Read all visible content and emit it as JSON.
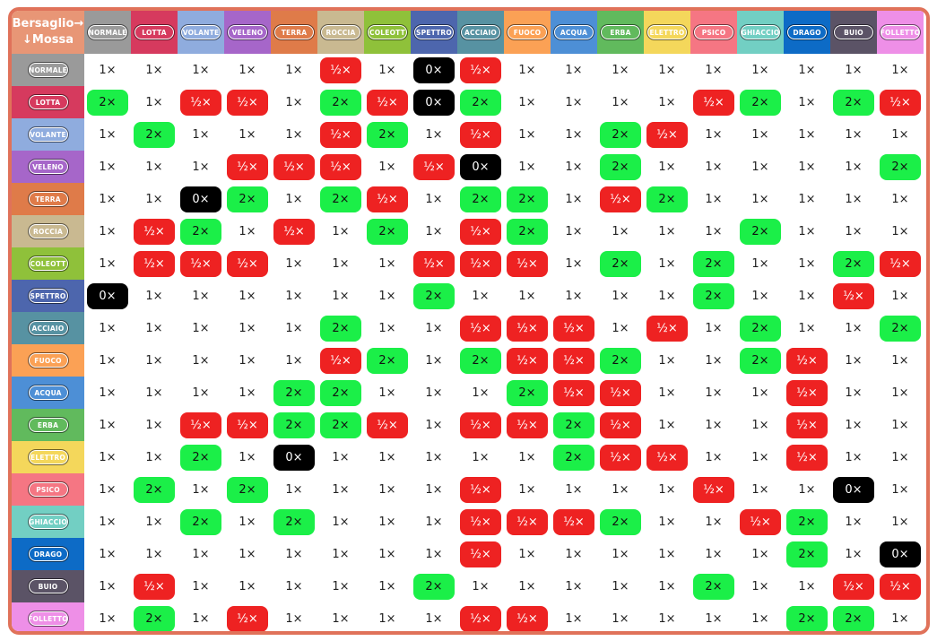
{
  "corner": {
    "target_label": "Bersaglio→",
    "move_label": "↓Mossa"
  },
  "types": [
    {
      "key": "normale",
      "label": "NORMALE",
      "color": "#9a9a9a"
    },
    {
      "key": "lotta",
      "label": "LOTTA",
      "color": "#d63a5e"
    },
    {
      "key": "volante",
      "label": "VOLANTE",
      "color": "#8facde"
    },
    {
      "key": "veleno",
      "label": "VELENO",
      "color": "#a666c9"
    },
    {
      "key": "terra",
      "label": "TERRA",
      "color": "#df7b49"
    },
    {
      "key": "roccia",
      "label": "ROCCIA",
      "color": "#c9b991"
    },
    {
      "key": "coleott",
      "label": "COLEOTT",
      "color": "#8fc13a"
    },
    {
      "key": "spettro",
      "label": "SPETTRO",
      "color": "#4d66ad"
    },
    {
      "key": "acciaio",
      "label": "ACCIAIO",
      "color": "#5792a2"
    },
    {
      "key": "fuoco",
      "label": "FUOCO",
      "color": "#fba155"
    },
    {
      "key": "acqua",
      "label": "ACQUA",
      "color": "#4d8fd6"
    },
    {
      "key": "erba",
      "label": "ERBA",
      "color": "#61ba5d"
    },
    {
      "key": "elettro",
      "label": "ELETTRO",
      "color": "#f4d75b"
    },
    {
      "key": "psico",
      "label": "PSICO",
      "color": "#f57683"
    },
    {
      "key": "ghiaccio",
      "label": "GHIACCIO",
      "color": "#72cfc3"
    },
    {
      "key": "drago",
      "label": "DRAGO",
      "color": "#0d6bc6"
    },
    {
      "key": "buio",
      "label": "BUIO",
      "color": "#5b5366"
    },
    {
      "key": "folletto",
      "label": "FOLLETTO",
      "color": "#ee8fe7"
    }
  ],
  "labels": {
    "one": "1×",
    "two": "2×",
    "half": "½×",
    "zero": "0×"
  },
  "matrix": [
    [
      "1",
      "1",
      "1",
      "1",
      "1",
      "h",
      "1",
      "0",
      "h",
      "1",
      "1",
      "1",
      "1",
      "1",
      "1",
      "1",
      "1",
      "1"
    ],
    [
      "2",
      "1",
      "h",
      "h",
      "1",
      "2",
      "h",
      "0",
      "2",
      "1",
      "1",
      "1",
      "1",
      "h",
      "2",
      "1",
      "2",
      "h"
    ],
    [
      "1",
      "2",
      "1",
      "1",
      "1",
      "h",
      "2",
      "1",
      "h",
      "1",
      "1",
      "2",
      "h",
      "1",
      "1",
      "1",
      "1",
      "1"
    ],
    [
      "1",
      "1",
      "1",
      "h",
      "h",
      "h",
      "1",
      "h",
      "0",
      "1",
      "1",
      "2",
      "1",
      "1",
      "1",
      "1",
      "1",
      "2"
    ],
    [
      "1",
      "1",
      "0",
      "2",
      "1",
      "2",
      "h",
      "1",
      "2",
      "2",
      "1",
      "h",
      "2",
      "1",
      "1",
      "1",
      "1",
      "1"
    ],
    [
      "1",
      "h",
      "2",
      "1",
      "h",
      "1",
      "2",
      "1",
      "h",
      "2",
      "1",
      "1",
      "1",
      "1",
      "2",
      "1",
      "1",
      "1"
    ],
    [
      "1",
      "h",
      "h",
      "h",
      "1",
      "1",
      "1",
      "h",
      "h",
      "h",
      "1",
      "2",
      "1",
      "2",
      "1",
      "1",
      "2",
      "h"
    ],
    [
      "0",
      "1",
      "1",
      "1",
      "1",
      "1",
      "1",
      "2",
      "1",
      "1",
      "1",
      "1",
      "1",
      "2",
      "1",
      "1",
      "h",
      "1"
    ],
    [
      "1",
      "1",
      "1",
      "1",
      "1",
      "2",
      "1",
      "1",
      "h",
      "h",
      "h",
      "1",
      "h",
      "1",
      "2",
      "1",
      "1",
      "2"
    ],
    [
      "1",
      "1",
      "1",
      "1",
      "1",
      "h",
      "2",
      "1",
      "2",
      "h",
      "h",
      "2",
      "1",
      "1",
      "2",
      "h",
      "1",
      "1"
    ],
    [
      "1",
      "1",
      "1",
      "1",
      "2",
      "2",
      "1",
      "1",
      "1",
      "2",
      "h",
      "h",
      "1",
      "1",
      "1",
      "h",
      "1",
      "1"
    ],
    [
      "1",
      "1",
      "h",
      "h",
      "2",
      "2",
      "h",
      "1",
      "h",
      "h",
      "2",
      "h",
      "1",
      "1",
      "1",
      "h",
      "1",
      "1"
    ],
    [
      "1",
      "1",
      "2",
      "1",
      "0",
      "1",
      "1",
      "1",
      "1",
      "1",
      "2",
      "h",
      "h",
      "1",
      "1",
      "h",
      "1",
      "1"
    ],
    [
      "1",
      "2",
      "1",
      "2",
      "1",
      "1",
      "1",
      "1",
      "h",
      "1",
      "1",
      "1",
      "1",
      "h",
      "1",
      "1",
      "0",
      "1"
    ],
    [
      "1",
      "1",
      "2",
      "1",
      "2",
      "1",
      "1",
      "1",
      "h",
      "h",
      "h",
      "2",
      "1",
      "1",
      "h",
      "2",
      "1",
      "1"
    ],
    [
      "1",
      "1",
      "1",
      "1",
      "1",
      "1",
      "1",
      "1",
      "h",
      "1",
      "1",
      "1",
      "1",
      "1",
      "1",
      "2",
      "1",
      "0"
    ],
    [
      "1",
      "h",
      "1",
      "1",
      "1",
      "1",
      "1",
      "2",
      "1",
      "1",
      "1",
      "1",
      "1",
      "2",
      "1",
      "1",
      "h",
      "h"
    ],
    [
      "1",
      "2",
      "1",
      "h",
      "1",
      "1",
      "1",
      "1",
      "h",
      "h",
      "1",
      "1",
      "1",
      "1",
      "1",
      "2",
      "2",
      "1"
    ]
  ]
}
